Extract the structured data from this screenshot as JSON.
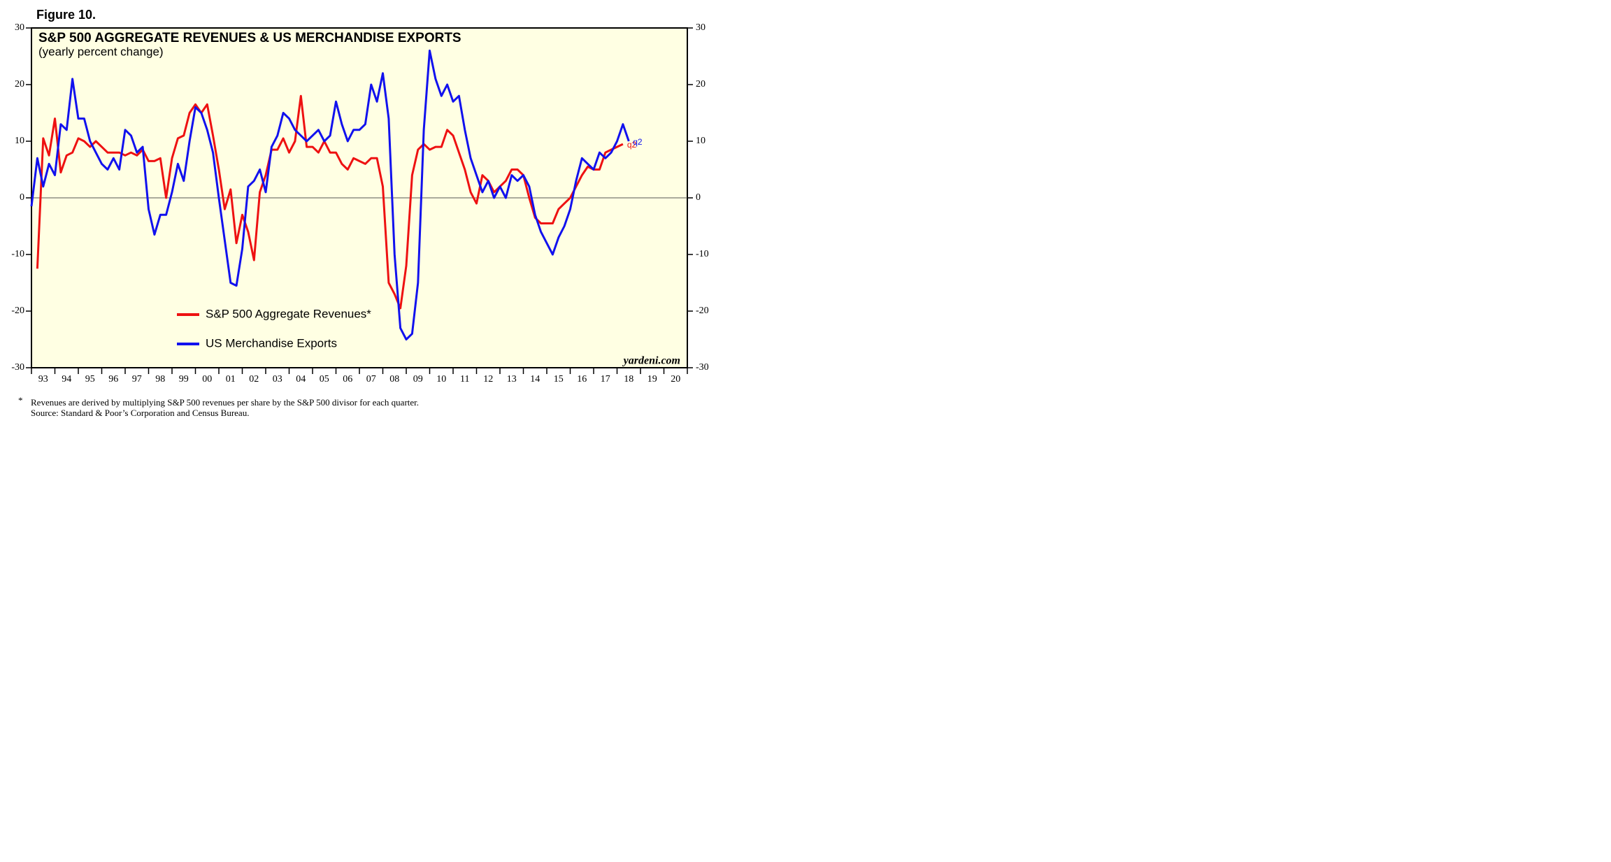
{
  "chart_data": {
    "type": "line",
    "figure_label": "Figure 10.",
    "title": "S&P 500 AGGREGATE REVENUES & US MERCHANDISE EXPORTS",
    "subtitle": "(yearly percent change)",
    "source_credit": "yardeni.com",
    "footnotes": [
      "Revenues are derived by multiplying S&P 500 revenues per share by the S&P 500 divisor for each quarter.",
      "Source: Standard & Poor’s Corporation and Census Bureau."
    ],
    "footnote_marker": "*",
    "end_labels": [
      "q2",
      "q2"
    ],
    "xlim": [
      1993,
      2021
    ],
    "xticks": [
      {
        "value": 1993,
        "label": "93"
      },
      {
        "value": 1994,
        "label": "94"
      },
      {
        "value": 1995,
        "label": "95"
      },
      {
        "value": 1996,
        "label": "96"
      },
      {
        "value": 1997,
        "label": "97"
      },
      {
        "value": 1998,
        "label": "98"
      },
      {
        "value": 1999,
        "label": "99"
      },
      {
        "value": 2000,
        "label": "00"
      },
      {
        "value": 2001,
        "label": "01"
      },
      {
        "value": 2002,
        "label": "02"
      },
      {
        "value": 2003,
        "label": "03"
      },
      {
        "value": 2004,
        "label": "04"
      },
      {
        "value": 2005,
        "label": "05"
      },
      {
        "value": 2006,
        "label": "06"
      },
      {
        "value": 2007,
        "label": "07"
      },
      {
        "value": 2008,
        "label": "08"
      },
      {
        "value": 2009,
        "label": "09"
      },
      {
        "value": 2010,
        "label": "10"
      },
      {
        "value": 2011,
        "label": "11"
      },
      {
        "value": 2012,
        "label": "12"
      },
      {
        "value": 2013,
        "label": "13"
      },
      {
        "value": 2014,
        "label": "14"
      },
      {
        "value": 2015,
        "label": "15"
      },
      {
        "value": 2016,
        "label": "16"
      },
      {
        "value": 2017,
        "label": "17"
      },
      {
        "value": 2018,
        "label": "18"
      },
      {
        "value": 2019,
        "label": "19"
      },
      {
        "value": 2020,
        "label": "20"
      }
    ],
    "ylim": [
      -30,
      30
    ],
    "yticks": [
      -30,
      -20,
      -10,
      0,
      10,
      20,
      30
    ],
    "y2lim": [
      -30,
      30
    ],
    "y2ticks": [
      -30,
      -20,
      -10,
      0,
      10,
      20,
      30
    ],
    "background": "#ffffe3",
    "series": [
      {
        "name": "S&P 500 Aggregate Revenues*",
        "color": "#ee1111",
        "x": [
          1993.25,
          1993.5,
          1993.75,
          1994.0,
          1994.25,
          1994.5,
          1994.75,
          1995.0,
          1995.25,
          1995.5,
          1995.75,
          1996.0,
          1996.25,
          1996.5,
          1996.75,
          1997.0,
          1997.25,
          1997.5,
          1997.75,
          1998.0,
          1998.25,
          1998.5,
          1998.75,
          1999.0,
          1999.25,
          1999.5,
          1999.75,
          2000.0,
          2000.25,
          2000.5,
          2000.75,
          2001.0,
          2001.25,
          2001.5,
          2001.75,
          2002.0,
          2002.25,
          2002.5,
          2002.75,
          2003.0,
          2003.25,
          2003.5,
          2003.75,
          2004.0,
          2004.25,
          2004.5,
          2004.75,
          2005.0,
          2005.25,
          2005.5,
          2005.75,
          2006.0,
          2006.25,
          2006.5,
          2006.75,
          2007.0,
          2007.25,
          2007.5,
          2007.75,
          2008.0,
          2008.25,
          2008.5,
          2008.75,
          2009.0,
          2009.25,
          2009.5,
          2009.75,
          2010.0,
          2010.25,
          2010.5,
          2010.75,
          2011.0,
          2011.25,
          2011.5,
          2011.75,
          2012.0,
          2012.25,
          2012.5,
          2012.75,
          2013.0,
          2013.25,
          2013.5,
          2013.75,
          2014.0,
          2014.25,
          2014.5,
          2014.75,
          2015.0,
          2015.25,
          2015.5,
          2015.75,
          2016.0,
          2016.25,
          2016.5,
          2016.75,
          2017.0,
          2017.25,
          2017.5,
          2017.75,
          2018.0,
          2018.25
        ],
        "values": [
          -12.5,
          10.5,
          7.5,
          14,
          4.5,
          7.5,
          8,
          10.5,
          10,
          9,
          10,
          9,
          8,
          8,
          8,
          7.5,
          8,
          7.5,
          8.5,
          6.5,
          6.5,
          7,
          0,
          7,
          10.5,
          11,
          15,
          16.5,
          15,
          16.5,
          11,
          5,
          -2,
          1.5,
          -8,
          -3,
          -6,
          -11,
          1,
          4,
          8.5,
          8.5,
          10.5,
          8,
          10,
          18,
          9,
          9,
          8,
          10,
          8,
          8,
          6,
          5,
          7,
          6.5,
          6,
          7,
          7,
          2,
          -15,
          -17,
          -19.5,
          -12,
          4,
          8.5,
          9.5,
          8.5,
          9,
          9,
          12,
          11,
          8,
          5,
          1,
          -1,
          4,
          3,
          1,
          2,
          3,
          5,
          5,
          4,
          0,
          -3.5,
          -4.5,
          -4.5,
          -4.5,
          -2,
          -1,
          0,
          2,
          4,
          5.5,
          5,
          5,
          8,
          8.5,
          9,
          9.5
        ]
      },
      {
        "name": "US Merchandise Exports",
        "color": "#1111ee",
        "x": [
          1993.0,
          1993.25,
          1993.5,
          1993.75,
          1994.0,
          1994.25,
          1994.5,
          1994.75,
          1995.0,
          1995.25,
          1995.5,
          1995.75,
          1996.0,
          1996.25,
          1996.5,
          1996.75,
          1997.0,
          1997.25,
          1997.5,
          1997.75,
          1998.0,
          1998.25,
          1998.5,
          1998.75,
          1999.0,
          1999.25,
          1999.5,
          1999.75,
          2000.0,
          2000.25,
          2000.5,
          2000.75,
          2001.0,
          2001.25,
          2001.5,
          2001.75,
          2002.0,
          2002.25,
          2002.5,
          2002.75,
          2003.0,
          2003.25,
          2003.5,
          2003.75,
          2004.0,
          2004.25,
          2004.5,
          2004.75,
          2005.0,
          2005.25,
          2005.5,
          2005.75,
          2006.0,
          2006.25,
          2006.5,
          2006.75,
          2007.0,
          2007.25,
          2007.5,
          2007.75,
          2008.0,
          2008.25,
          2008.5,
          2008.75,
          2009.0,
          2009.25,
          2009.5,
          2009.75,
          2010.0,
          2010.25,
          2010.5,
          2010.75,
          2011.0,
          2011.25,
          2011.5,
          2011.75,
          2012.0,
          2012.25,
          2012.5,
          2012.75,
          2013.0,
          2013.25,
          2013.5,
          2013.75,
          2014.0,
          2014.25,
          2014.5,
          2014.75,
          2015.0,
          2015.25,
          2015.5,
          2015.75,
          2016.0,
          2016.25,
          2016.5,
          2016.75,
          2017.0,
          2017.25,
          2017.5,
          2017.75,
          2018.0,
          2018.25,
          2018.5
        ],
        "values": [
          -1.5,
          7,
          2,
          6,
          4,
          13,
          12,
          21,
          14,
          14,
          10,
          8,
          6,
          5,
          7,
          5,
          12,
          11,
          8,
          9,
          -2,
          -6.5,
          -3,
          -3,
          1,
          6,
          3,
          10,
          16,
          15,
          12,
          8,
          0,
          -7.5,
          -15,
          -15.5,
          -9,
          2,
          3,
          5,
          1,
          9,
          11,
          15,
          14,
          12,
          11,
          10,
          11,
          12,
          10,
          11,
          17,
          13,
          10,
          12,
          12,
          13,
          20,
          17,
          22,
          14,
          -10,
          -23,
          -25,
          -24,
          -15,
          12,
          26,
          21,
          18,
          20,
          17,
          18,
          12,
          7,
          4,
          1,
          3,
          0,
          2,
          0,
          4,
          3,
          4,
          2,
          -3,
          -6,
          -8,
          -10,
          -7,
          -5,
          -2,
          3,
          7,
          6,
          5,
          8,
          7,
          8,
          10,
          13,
          10
        ]
      }
    ]
  }
}
